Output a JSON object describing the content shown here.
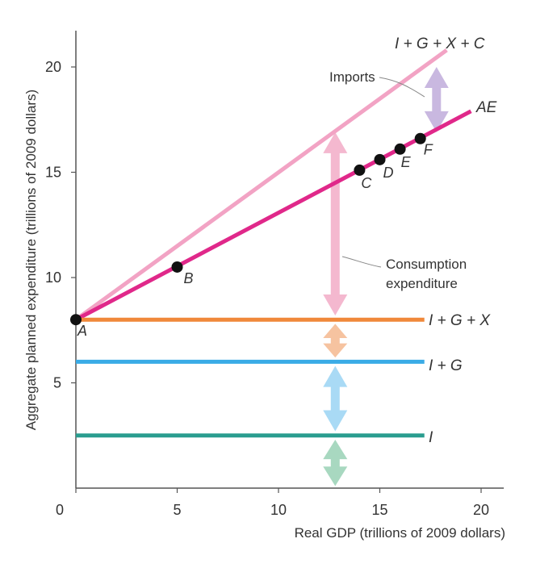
{
  "chart_data": {
    "type": "line",
    "xlabel": "Real GDP (trillions of 2009 dollars)",
    "ylabel": "Aggregate planned expenditure (trillions of 2009 dollars)",
    "xlim": [
      0,
      21
    ],
    "ylim": [
      0,
      22
    ],
    "x_ticks": [
      0,
      5,
      10,
      15,
      20
    ],
    "y_ticks": [
      5,
      10,
      15,
      20
    ],
    "x_tick_labels": [
      "0",
      "5",
      "10",
      "15",
      "20"
    ],
    "y_tick_labels": [
      "5",
      "10",
      "15",
      "20"
    ],
    "grid": false,
    "series": [
      {
        "name": "I + G + X + C",
        "color": "#f2a3c4",
        "x": [
          0,
          18.3
        ],
        "y": [
          8,
          20.8
        ]
      },
      {
        "name": "AE",
        "color": "#e0288a",
        "x": [
          0,
          19.5
        ],
        "y": [
          8,
          17.9
        ]
      },
      {
        "name": "I + G + X",
        "color": "#f0883a",
        "x": [
          0,
          17.2
        ],
        "y": [
          8,
          8
        ]
      },
      {
        "name": "I + G",
        "color": "#3aabe6",
        "x": [
          0,
          17.2
        ],
        "y": [
          6,
          6
        ]
      },
      {
        "name": "I",
        "color": "#2a9d8f",
        "x": [
          0,
          17.2
        ],
        "y": [
          2.5,
          2.5
        ]
      }
    ],
    "points": [
      {
        "label": "A",
        "x": 0,
        "y": 8
      },
      {
        "label": "B",
        "x": 5,
        "y": 10.5
      },
      {
        "label": "C",
        "x": 14,
        "y": 15.1
      },
      {
        "label": "D",
        "x": 15,
        "y": 15.6
      },
      {
        "label": "E",
        "x": 16,
        "y": 16.1
      },
      {
        "label": "F",
        "x": 17,
        "y": 16.6
      }
    ],
    "annotations": [
      {
        "label": "Imports",
        "color": "#c9b8e0",
        "x": 17.8,
        "y_from": 16.9,
        "y_to": 20.0
      },
      {
        "label": "Consumption\nexpenditure",
        "color": "#f4b8cf",
        "x": 12.8,
        "y_from": 8.2,
        "y_to": 16.9
      },
      {
        "label": "",
        "color": "#f6c3a0",
        "x": 12.8,
        "y_from": 6.2,
        "y_to": 7.8
      },
      {
        "label": "",
        "color": "#a9daf5",
        "x": 12.8,
        "y_from": 2.7,
        "y_to": 5.8
      },
      {
        "label": "",
        "color": "#a8d8c0",
        "x": 12.8,
        "y_from": 0.1,
        "y_to": 2.3
      }
    ]
  }
}
